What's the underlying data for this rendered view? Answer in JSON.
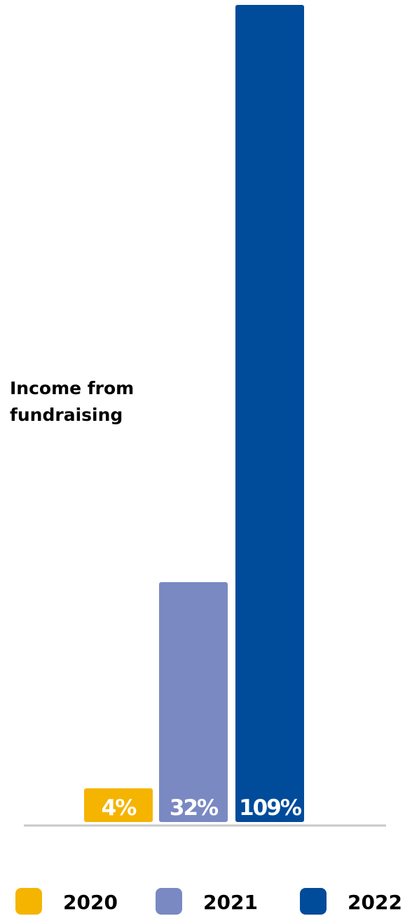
{
  "chart_data": {
    "type": "bar",
    "title": "Income from fundraising",
    "title_lines": [
      "Income from",
      "fundraising"
    ],
    "categories": [
      "2020",
      "2021",
      "2022"
    ],
    "values": [
      4,
      32,
      109
    ],
    "value_labels": [
      "4%",
      "32%",
      "109%"
    ],
    "unit": "%",
    "colors": [
      "#F5B400",
      "#7A89C2",
      "#004B9A"
    ],
    "axis_color": "#C8C8C8",
    "ylim": [
      0,
      109
    ],
    "grid": false,
    "legend_position": "bottom",
    "legend": [
      {
        "label": "2020",
        "color": "#F5B400"
      },
      {
        "label": "2021",
        "color": "#7A89C2"
      },
      {
        "label": "2022",
        "color": "#004B9A"
      }
    ]
  }
}
